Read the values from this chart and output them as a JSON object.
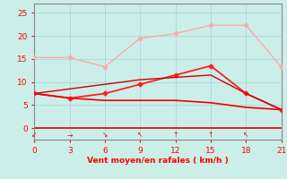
{
  "background_color": "#cceee8",
  "xlabel": "Vent moyen/en rafales ( km/h )",
  "xlim": [
    0,
    21
  ],
  "ylim": [
    -2.5,
    27
  ],
  "xticks": [
    0,
    3,
    6,
    9,
    12,
    15,
    18,
    21
  ],
  "yticks": [
    0,
    5,
    10,
    15,
    20,
    25
  ],
  "grid_color": "#aadddd",
  "line1": {
    "x": [
      0,
      3,
      6,
      9,
      12,
      15,
      18,
      21
    ],
    "y": [
      15.3,
      15.3,
      13.3,
      19.5,
      20.5,
      22.3,
      22.3,
      13.3
    ],
    "color": "#ffaaaa",
    "linewidth": 1.0,
    "marker": "D",
    "markersize": 2.5
  },
  "line2": {
    "x": [
      0,
      3,
      6,
      9,
      12,
      15,
      18,
      21
    ],
    "y": [
      7.5,
      6.5,
      7.5,
      9.5,
      11.5,
      13.5,
      7.5,
      4.0
    ],
    "color": "#ff2020",
    "linewidth": 1.3,
    "marker": "D",
    "markersize": 2.5
  },
  "line3": {
    "x": [
      0,
      3,
      6,
      9,
      12,
      15,
      18,
      21
    ],
    "y": [
      7.5,
      8.5,
      9.5,
      10.5,
      11.0,
      11.5,
      7.5,
      4.0
    ],
    "color": "#cc0000",
    "linewidth": 1.0,
    "marker": null,
    "markersize": 0
  },
  "line4": {
    "x": [
      0,
      3,
      6,
      9,
      12,
      15,
      18,
      21
    ],
    "y": [
      7.5,
      6.5,
      6.0,
      6.0,
      6.0,
      5.5,
      4.5,
      4.0
    ],
    "color": "#ee0000",
    "linewidth": 1.2,
    "marker": null,
    "markersize": 0
  },
  "wind_arrows": [
    {
      "x": 0,
      "ch": "↙"
    },
    {
      "x": 3,
      "ch": "→"
    },
    {
      "x": 6,
      "ch": "↘"
    },
    {
      "x": 9,
      "ch": "↖"
    },
    {
      "x": 12,
      "ch": "↑"
    },
    {
      "x": 15,
      "ch": "↑"
    },
    {
      "x": 18,
      "ch": "↖"
    }
  ],
  "xlabel_color": "#ff0000",
  "tick_color": "#ff0000",
  "axis_color": "#888888",
  "spine_color": "#888888"
}
